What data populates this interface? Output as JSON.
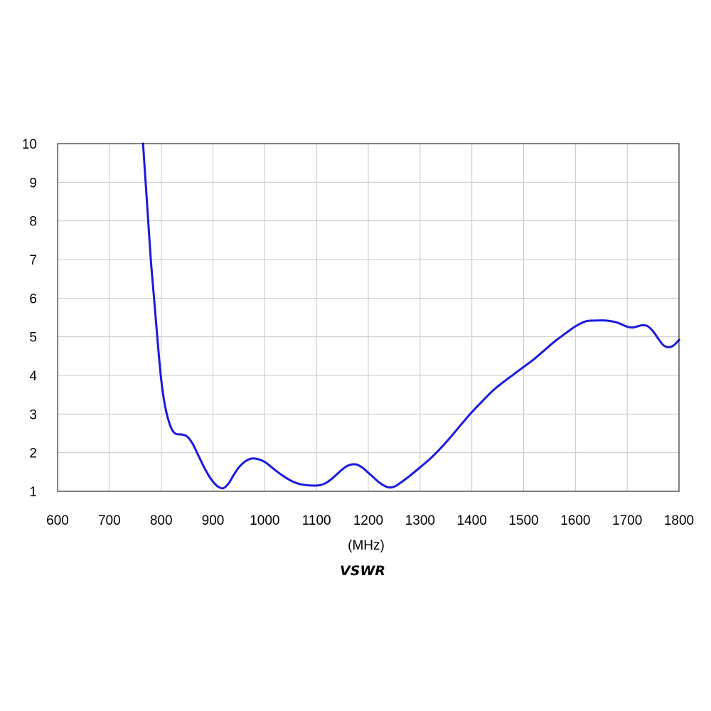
{
  "chart_data": {
    "type": "line",
    "title": "",
    "caption": "VSWR",
    "xlabel": "(MHz)",
    "ylabel": "",
    "xlim": [
      600,
      1800
    ],
    "ylim": [
      1,
      10
    ],
    "x_ticks": [
      "600",
      "700",
      "800",
      "900",
      "1000",
      "1100",
      "1200",
      "1300",
      "1400",
      "1500",
      "1600",
      "1700",
      "1800"
    ],
    "y_ticks": [
      "1",
      "2",
      "3",
      "4",
      "5",
      "6",
      "7",
      "8",
      "9",
      "10"
    ],
    "grid": true,
    "legend": "none",
    "line_color": "#1a1adf",
    "grid_color": "#c8c8c8",
    "series": [
      {
        "x": [
          765,
          770,
          775,
          780,
          785,
          790,
          795,
          800,
          805,
          810,
          815,
          820,
          825,
          830,
          840,
          850,
          860,
          870,
          880,
          890,
          900,
          910,
          920,
          930,
          940,
          950,
          960,
          970,
          980,
          990,
          1000,
          1010,
          1020,
          1030,
          1040,
          1050,
          1060,
          1070,
          1080,
          1090,
          1100,
          1110,
          1120,
          1130,
          1140,
          1150,
          1160,
          1170,
          1180,
          1190,
          1200,
          1210,
          1220,
          1230,
          1240,
          1250,
          1260,
          1280,
          1300,
          1320,
          1340,
          1360,
          1380,
          1400,
          1420,
          1440,
          1460,
          1480,
          1500,
          1520,
          1540,
          1560,
          1580,
          1600,
          1620,
          1640,
          1660,
          1680,
          1700,
          1710,
          1720,
          1730,
          1740,
          1750,
          1760,
          1770,
          1780,
          1790,
          1800
        ],
        "y": [
          10.0,
          9.0,
          8.0,
          7.0,
          6.2,
          5.4,
          4.6,
          3.9,
          3.4,
          3.05,
          2.8,
          2.62,
          2.52,
          2.48,
          2.47,
          2.42,
          2.25,
          1.98,
          1.7,
          1.45,
          1.25,
          1.12,
          1.08,
          1.2,
          1.42,
          1.62,
          1.75,
          1.83,
          1.85,
          1.82,
          1.76,
          1.66,
          1.55,
          1.45,
          1.36,
          1.28,
          1.22,
          1.18,
          1.16,
          1.15,
          1.15,
          1.17,
          1.23,
          1.33,
          1.45,
          1.57,
          1.66,
          1.7,
          1.68,
          1.6,
          1.48,
          1.36,
          1.24,
          1.15,
          1.1,
          1.12,
          1.2,
          1.4,
          1.62,
          1.85,
          2.12,
          2.42,
          2.74,
          3.05,
          3.33,
          3.6,
          3.82,
          4.02,
          4.22,
          4.42,
          4.65,
          4.88,
          5.08,
          5.27,
          5.4,
          5.42,
          5.42,
          5.37,
          5.26,
          5.24,
          5.27,
          5.3,
          5.27,
          5.14,
          4.95,
          4.78,
          4.73,
          4.78,
          4.92
        ]
      }
    ]
  }
}
